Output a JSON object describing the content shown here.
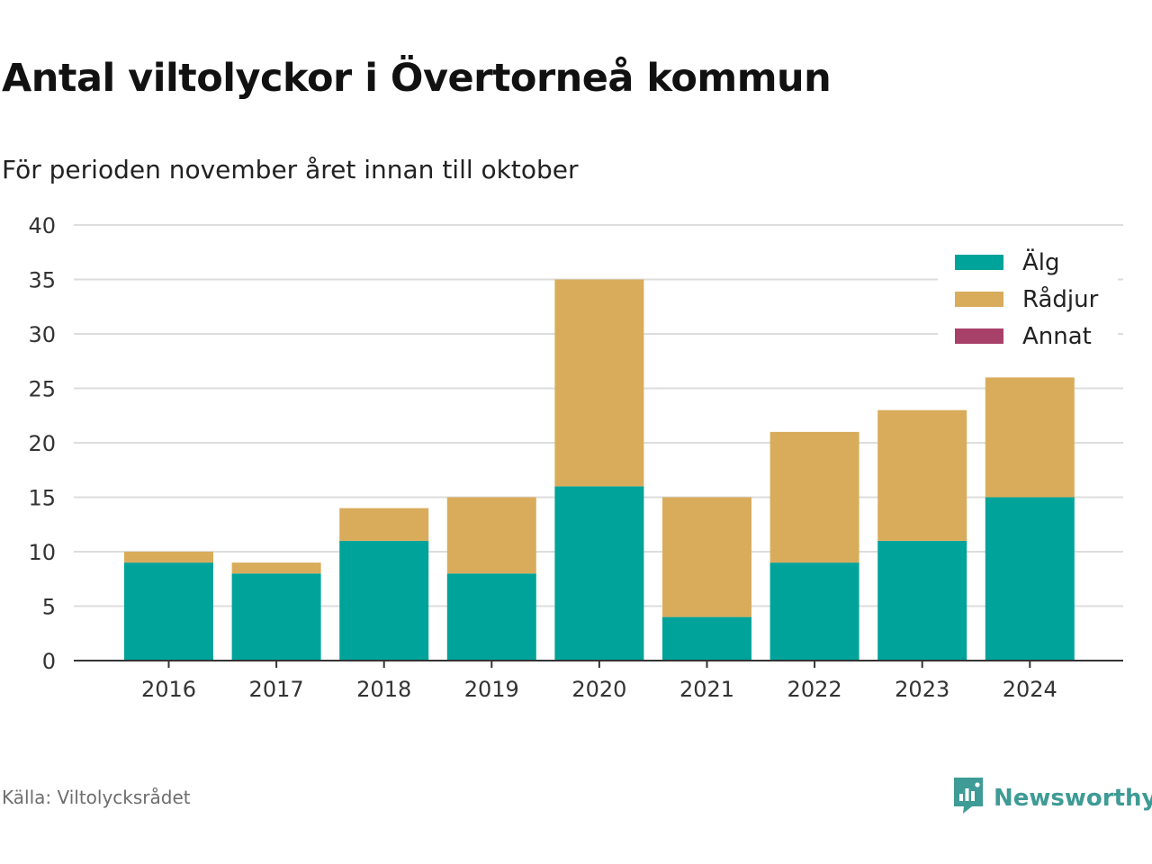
{
  "header": {
    "title": "Antal viltolyckor i Övertorneå kommun",
    "subtitle": "För perioden november året innan till oktober"
  },
  "footer": {
    "source": "Källa: Viltolycksrådet",
    "brand": "Newsworthy",
    "brand_icon": "newsworthy-logo-icon"
  },
  "colors": {
    "alg": "#00a39a",
    "radjur": "#d9ac5b",
    "annat": "#a8416a",
    "grid": "#dddddd",
    "axis": "#333333",
    "tick_text": "#333333"
  },
  "chart_data": {
    "type": "bar",
    "stacked": true,
    "categories": [
      "2016",
      "2017",
      "2018",
      "2019",
      "2020",
      "2021",
      "2022",
      "2023",
      "2024"
    ],
    "series": [
      {
        "name": "Älg",
        "values": [
          9,
          8,
          11,
          8,
          16,
          4,
          9,
          11,
          15
        ]
      },
      {
        "name": "Rådjur",
        "values": [
          1,
          1,
          3,
          7,
          19,
          11,
          12,
          12,
          11
        ]
      },
      {
        "name": "Annat",
        "values": [
          0,
          0,
          0,
          0,
          0,
          0,
          0,
          0,
          0
        ]
      }
    ],
    "ylim": [
      0,
      40
    ],
    "yticks": [
      0,
      5,
      10,
      15,
      20,
      25,
      30,
      35,
      40
    ],
    "xlabel": "",
    "ylabel": "",
    "grid": true,
    "legend": "top-right"
  }
}
